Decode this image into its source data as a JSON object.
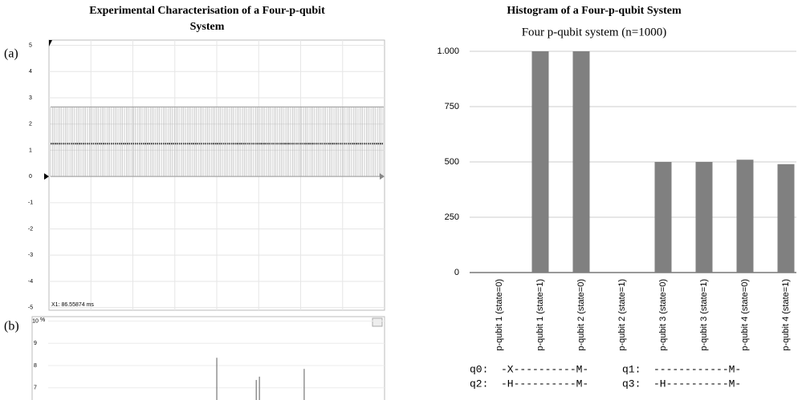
{
  "title": "Experimental Characterisation of a Four-p-qubit System",
  "chart_data": [
    {
      "type": "scope",
      "label": "(a)",
      "annotation": "X1: 86.55874 ms",
      "ylim": [
        -5.1,
        5.2
      ],
      "yticks": [
        5,
        4,
        3,
        2,
        1,
        0,
        -1,
        -2,
        -3,
        -4,
        -5
      ],
      "signal_high": 2.65,
      "signal_low": 0,
      "mean": 1.25,
      "grid": true
    },
    {
      "type": "spikes",
      "label": "(b)",
      "ylabel": "%",
      "xlim": [
        0,
        1
      ],
      "ylim": [
        6.45,
        10.2
      ],
      "yticks": [
        10,
        9,
        8,
        7
      ],
      "x": [
        0.524,
        0.636,
        0.645,
        0.772
      ],
      "values": [
        8.35,
        7.35,
        7.5,
        7.85
      ],
      "grid": true
    },
    {
      "type": "bar",
      "title": "Histogram of a Four-p-qubit System",
      "subtitle": "Four p-qubit system (n=1000)",
      "categories": [
        "p-qubit 1 (state=0)",
        "p-qubit 1 (state=1)",
        "p-qubit 2 (state=0)",
        "p-qubit 2 (state=1)",
        "p-qubit 3 (state=0)",
        "p-qubit 3 (state=1)",
        "p-qubit 4 (state=0)",
        "p-qubit 4 (state=1)"
      ],
      "values": [
        0,
        1000,
        1000,
        0,
        500,
        500,
        510,
        490
      ],
      "color": "#808080",
      "ylim": [
        0,
        1000
      ],
      "yticks": [
        0,
        250,
        500,
        750,
        {
          "value": 1000,
          "label": "1.000"
        }
      ],
      "grid": true,
      "circuit": [
        "q0:  -X----------M-",
        "q1:  ------------M-",
        "q2:  -H----------M-",
        "q3:  -H----------M-"
      ]
    }
  ]
}
